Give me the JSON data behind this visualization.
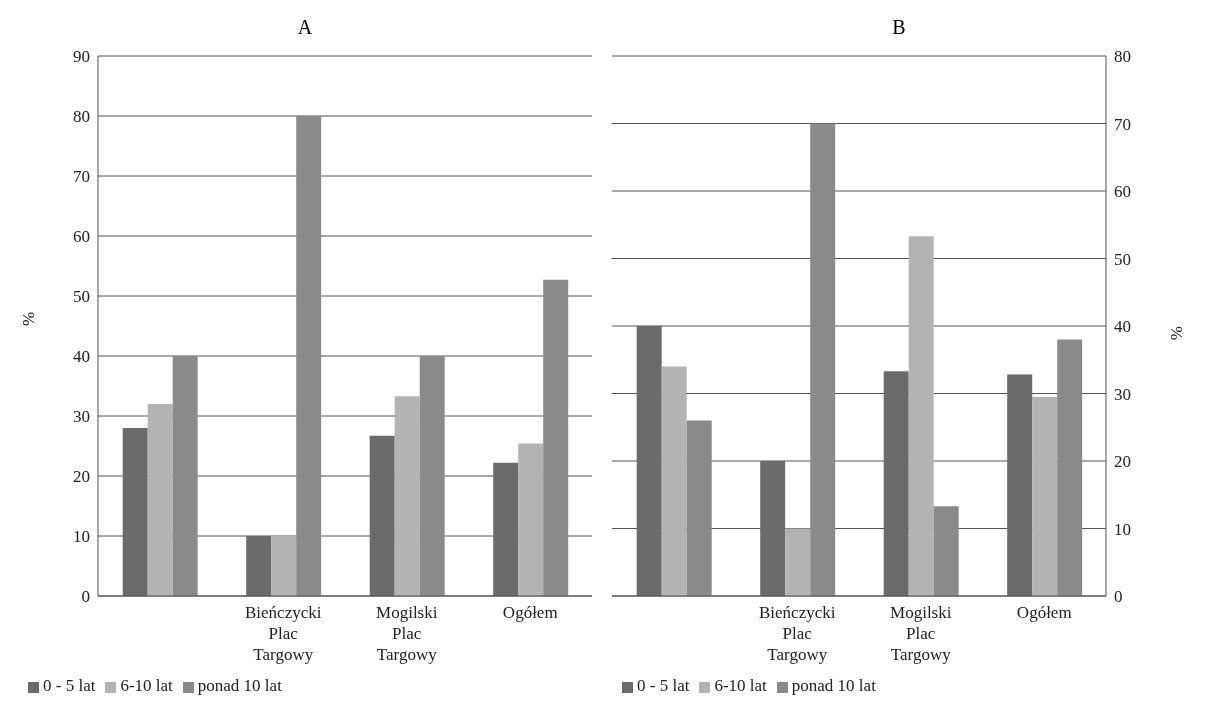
{
  "chart_data": [
    {
      "type": "bar",
      "title": "A",
      "ylabel": "%",
      "categories": [
        null,
        "Bieńczycki Plac Targowy",
        "Mogilski Plac Targowy",
        "Ogółem"
      ],
      "ylim": [
        0,
        90
      ],
      "yticks": [
        0,
        10,
        20,
        30,
        40,
        50,
        60,
        70,
        80,
        90
      ],
      "grid": "y",
      "legend": "bottom left",
      "series": [
        {
          "name": "0 - 5 lat",
          "color": "#6b6b6b",
          "values": [
            28,
            10,
            26.7,
            22.2
          ]
        },
        {
          "name": "6-10 lat",
          "color": "#b3b3b3",
          "values": [
            32,
            10,
            33.3,
            25.4
          ]
        },
        {
          "name": "ponad 10 lat",
          "color": "#8a8a8a",
          "values": [
            40,
            80,
            40,
            52.7
          ]
        }
      ]
    },
    {
      "type": "bar",
      "title": "B",
      "y2label": "%",
      "categories": [
        null,
        "Bieńczycki Plac Targowy",
        "Mogilski Plac Targowy",
        "Ogółem"
      ],
      "y2lim": [
        0,
        80
      ],
      "y2ticks": [
        0,
        10,
        20,
        30,
        40,
        50,
        60,
        70,
        80
      ],
      "grid": "y",
      "legend": "bottom left",
      "series": [
        {
          "name": "0 - 5 lat",
          "color": "#6b6b6b",
          "axis": "y2",
          "values": [
            40,
            20,
            33.3,
            32.8
          ]
        },
        {
          "name": "6-10 lat",
          "color": "#b3b3b3",
          "axis": "y2",
          "values": [
            34,
            10,
            53.3,
            29.5
          ]
        },
        {
          "name": "ponad 10 lat",
          "color": "#8a8a8a",
          "axis": "y2",
          "values": [
            26,
            70,
            13.3,
            38
          ]
        }
      ]
    }
  ]
}
